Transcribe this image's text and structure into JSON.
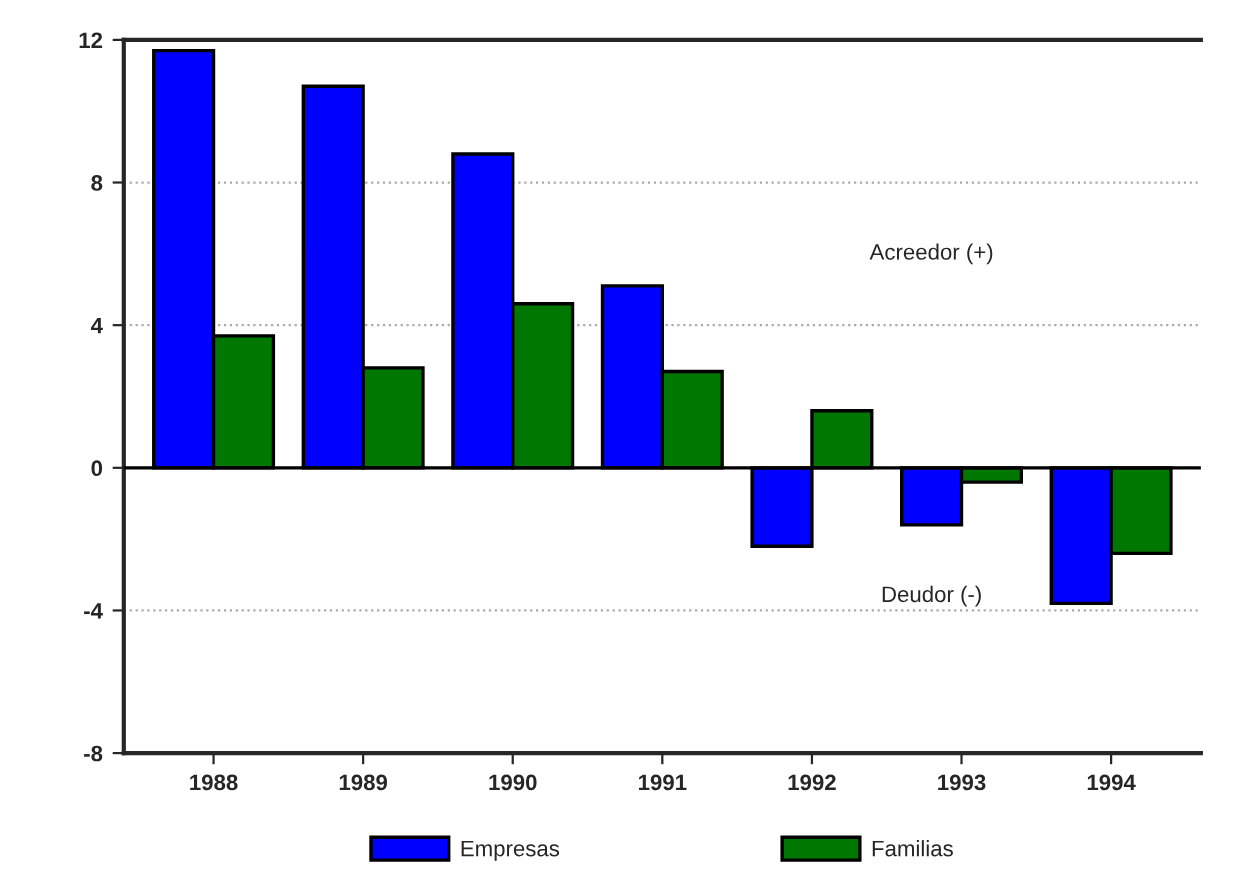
{
  "chart_data": {
    "type": "bar",
    "categories": [
      "1988",
      "1989",
      "1990",
      "1991",
      "1992",
      "1993",
      "1994"
    ],
    "series": [
      {
        "name": "Empresas",
        "color": "#0000ff",
        "values": [
          11.7,
          10.7,
          8.8,
          5.1,
          -2.2,
          -1.6,
          -3.8
        ]
      },
      {
        "name": "Familias",
        "color": "#007700",
        "values": [
          3.7,
          2.8,
          4.6,
          2.7,
          1.6,
          -0.4,
          -2.4
        ]
      }
    ],
    "ylim": [
      -8,
      12
    ],
    "yticks": [
      -8,
      -4,
      0,
      4,
      8,
      12
    ],
    "grid": "y",
    "legend": "bottom",
    "annotations": [
      "Acreedor (+)",
      "Deudor (-)"
    ]
  }
}
